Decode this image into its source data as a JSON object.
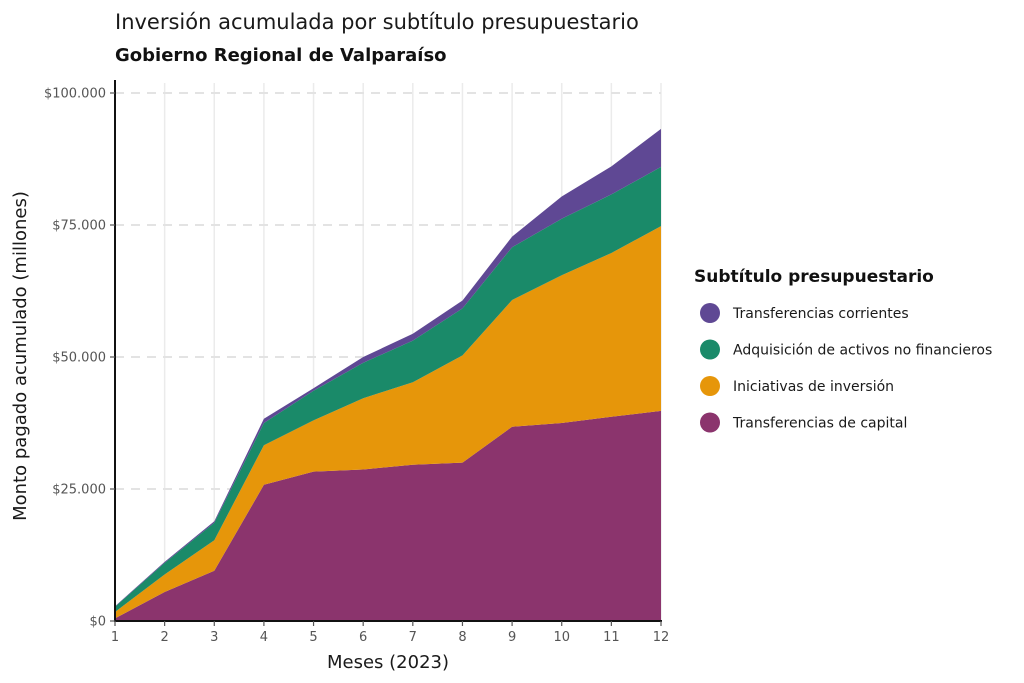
{
  "chart_data": {
    "type": "area",
    "stacked": true,
    "title": "Inversión acumulada por subtítulo presupuestario",
    "subtitle": "Gobierno Regional de Valparaíso",
    "xlabel": "Meses (2023)",
    "ylabel": "Monto pagado acumulado (millones)",
    "x": [
      1,
      2,
      3,
      4,
      5,
      6,
      7,
      8,
      9,
      10,
      11,
      12
    ],
    "x_tick_labels": [
      "1",
      "2",
      "3",
      "4",
      "5",
      "6",
      "7",
      "8",
      "9",
      "10",
      "11",
      "12"
    ],
    "ylim": [
      0,
      100000
    ],
    "y_ticks": [
      0,
      25000,
      50000,
      75000,
      100000
    ],
    "y_tick_labels": [
      "$0",
      "$25.000",
      "$50.000",
      "$75.000",
      "$100.000"
    ],
    "grid": true,
    "legend_position": "right",
    "legend_title": "Subtítulo presupuestario",
    "series": [
      {
        "name": "Transferencias de capital",
        "color": "#8b346d",
        "values": [
          500,
          5500,
          9500,
          25800,
          28300,
          28700,
          29600,
          30000,
          36800,
          37500,
          38700,
          39800
        ]
      },
      {
        "name": "Iniciativas de inversión",
        "color": "#e6960a",
        "values": [
          1200,
          3300,
          5800,
          7500,
          9700,
          13500,
          15600,
          20300,
          24000,
          28000,
          31000,
          35000
        ]
      },
      {
        "name": "Adquisición de activos no financieros",
        "color": "#1a8a69",
        "values": [
          1000,
          2200,
          3300,
          4200,
          5600,
          6700,
          7900,
          8900,
          10000,
          10700,
          11100,
          11200
        ]
      },
      {
        "name": "Transferencias corrientes",
        "color": "#5f4894",
        "values": [
          100,
          200,
          300,
          800,
          500,
          1100,
          1300,
          1500,
          2000,
          4200,
          5300,
          7200
        ]
      }
    ],
    "legend_order": [
      "Transferencias corrientes",
      "Adquisición de activos no financieros",
      "Iniciativas de inversión",
      "Transferencias de capital"
    ]
  }
}
